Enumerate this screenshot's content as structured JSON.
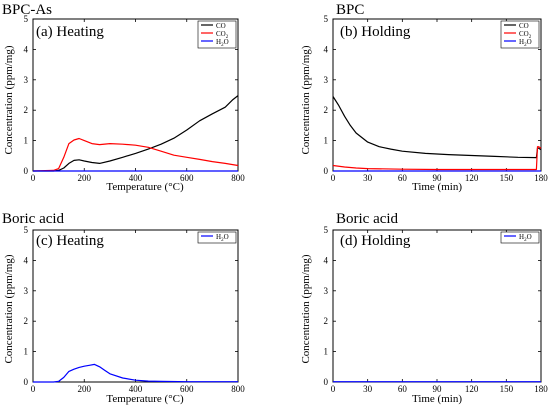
{
  "figure": {
    "panels": [
      {
        "sample": "BPC-As",
        "title": "(a) Heating",
        "xlabel": "Temperature (°C)",
        "ylabel": "Concentration (ppm/mg)"
      },
      {
        "sample": "BPC",
        "title": "(b) Holding",
        "xlabel": "Time (min)",
        "ylabel": "Concentration (ppm/mg)"
      },
      {
        "sample": "Boric acid",
        "title": "(c) Heating",
        "xlabel": "Temperature (°C)",
        "ylabel": "Concentration (ppm/mg)"
      },
      {
        "sample": "Boric acid",
        "title": "(d) Holding",
        "xlabel": "Time (min)",
        "ylabel": "Concentration (ppm/mg)"
      }
    ]
  },
  "chart_data": [
    {
      "type": "line",
      "sample": "BPC-As",
      "title": "(a) Heating",
      "xlabel": "Temperature (°C)",
      "ylabel": "Concentration (ppm/mg)",
      "xlim": [
        0,
        800
      ],
      "ylim": [
        0,
        5
      ],
      "xticks": [
        0,
        200,
        400,
        600,
        800
      ],
      "yticks": [
        0,
        1,
        2,
        3,
        4,
        5
      ],
      "legend": "top-right",
      "series": [
        {
          "name": "CO",
          "color": "#000000",
          "x": [
            0,
            80,
            100,
            120,
            140,
            160,
            180,
            200,
            230,
            260,
            300,
            350,
            400,
            450,
            500,
            550,
            600,
            650,
            700,
            750,
            780,
            800
          ],
          "y": [
            0,
            0,
            0.02,
            0.1,
            0.25,
            0.35,
            0.37,
            0.33,
            0.28,
            0.25,
            0.33,
            0.45,
            0.58,
            0.72,
            0.88,
            1.08,
            1.35,
            1.65,
            1.88,
            2.1,
            2.35,
            2.48
          ]
        },
        {
          "name": "CO2",
          "color": "#ff0000",
          "x": [
            0,
            80,
            100,
            120,
            140,
            160,
            180,
            200,
            230,
            260,
            300,
            350,
            400,
            450,
            500,
            550,
            600,
            650,
            700,
            750,
            800
          ],
          "y": [
            0,
            0.02,
            0.08,
            0.45,
            0.9,
            1.02,
            1.07,
            1.0,
            0.9,
            0.87,
            0.9,
            0.88,
            0.85,
            0.78,
            0.65,
            0.52,
            0.45,
            0.38,
            0.31,
            0.25,
            0.18
          ]
        },
        {
          "name": "H2O",
          "color": "#0000ff",
          "x": [
            0,
            200,
            400,
            600,
            800
          ],
          "y": [
            0,
            0,
            0,
            0,
            0
          ]
        }
      ]
    },
    {
      "type": "line",
      "sample": "BPC",
      "title": "(b) Holding",
      "xlabel": "Time (min)",
      "ylabel": "Concentration (ppm/mg)",
      "xlim": [
        0,
        180
      ],
      "ylim": [
        0,
        5
      ],
      "xticks": [
        0,
        30,
        60,
        90,
        120,
        150,
        180
      ],
      "yticks": [
        0,
        1,
        2,
        3,
        4,
        5
      ],
      "legend": "top-right",
      "series": [
        {
          "name": "CO",
          "color": "#000000",
          "x": [
            0,
            5,
            10,
            15,
            20,
            30,
            40,
            50,
            60,
            80,
            100,
            120,
            140,
            160,
            176,
            177,
            178,
            180
          ],
          "y": [
            2.45,
            2.15,
            1.8,
            1.5,
            1.25,
            0.95,
            0.8,
            0.72,
            0.65,
            0.58,
            0.54,
            0.51,
            0.48,
            0.45,
            0.44,
            0.75,
            0.75,
            0.7
          ]
        },
        {
          "name": "CO2",
          "color": "#ff0000",
          "x": [
            0,
            10,
            20,
            30,
            60,
            90,
            120,
            150,
            176,
            177,
            178,
            180
          ],
          "y": [
            0.18,
            0.13,
            0.1,
            0.08,
            0.06,
            0.05,
            0.05,
            0.05,
            0.05,
            0.8,
            0.8,
            0.75
          ]
        },
        {
          "name": "H2O",
          "color": "#0000ff",
          "x": [
            0,
            60,
            120,
            180
          ],
          "y": [
            0,
            0,
            0,
            0
          ]
        }
      ]
    },
    {
      "type": "line",
      "sample": "Boric acid",
      "title": "(c) Heating",
      "xlabel": "Temperature (°C)",
      "ylabel": "Concentration (ppm/mg)",
      "xlim": [
        0,
        800
      ],
      "ylim": [
        0,
        5
      ],
      "xticks": [
        0,
        200,
        400,
        600,
        800
      ],
      "yticks": [
        0,
        1,
        2,
        3,
        4,
        5
      ],
      "legend": "top-right",
      "series": [
        {
          "name": "H2O",
          "color": "#0000ff",
          "x": [
            0,
            80,
            100,
            120,
            140,
            160,
            180,
            200,
            220,
            240,
            260,
            280,
            300,
            350,
            400,
            450,
            500,
            600,
            700,
            800
          ],
          "y": [
            0,
            0,
            0.02,
            0.15,
            0.35,
            0.42,
            0.48,
            0.52,
            0.55,
            0.58,
            0.5,
            0.38,
            0.27,
            0.13,
            0.06,
            0.03,
            0.02,
            0.01,
            0.01,
            0.01
          ]
        }
      ]
    },
    {
      "type": "line",
      "sample": "Boric acid",
      "title": "(d) Holding",
      "xlabel": "Time (min)",
      "ylabel": "Concentration (ppm/mg)",
      "xlim": [
        0,
        180
      ],
      "ylim": [
        0,
        5
      ],
      "xticks": [
        0,
        30,
        60,
        90,
        120,
        150,
        180
      ],
      "yticks": [
        0,
        1,
        2,
        3,
        4,
        5
      ],
      "legend": "top-right",
      "series": [
        {
          "name": "H2O",
          "color": "#0000ff",
          "x": [
            0,
            30,
            60,
            90,
            120,
            150,
            180
          ],
          "y": [
            0.01,
            0.01,
            0.01,
            0.01,
            0.01,
            0.01,
            0.01
          ]
        }
      ]
    }
  ]
}
